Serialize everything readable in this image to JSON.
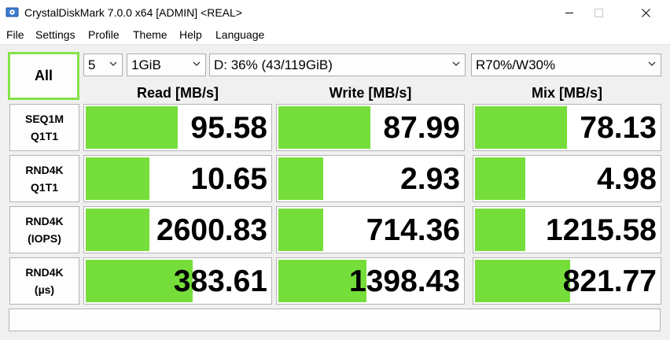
{
  "window": {
    "title": "CrystalDiskMark 7.0.0 x64 [ADMIN] <REAL>",
    "icon": "crystaldiskmark-icon",
    "controls": [
      "minimize-icon",
      "maximize-icon",
      "close-icon"
    ]
  },
  "menu": [
    "File",
    "Settings",
    "Profile",
    "Theme",
    "Help",
    "Language"
  ],
  "controls": {
    "all_button": "All",
    "count": "5",
    "size": "1GiB",
    "drive": "D: 36% (43/119GiB)",
    "mix": "R70%/W30%"
  },
  "columns": [
    "Read [MB/s]",
    "Write [MB/s]",
    "Mix [MB/s]"
  ],
  "rows": [
    {
      "line1": "SEQ1M",
      "line2": "Q1T1",
      "values": [
        "95.58",
        "87.99",
        "78.13"
      ],
      "fills": [
        0.49,
        0.49,
        0.49
      ]
    },
    {
      "line1": "RND4K",
      "line2": "Q1T1",
      "values": [
        "10.65",
        "2.93",
        "4.98"
      ],
      "fills": [
        0.34,
        0.24,
        0.27
      ]
    },
    {
      "line1": "RND4K",
      "line2": "(IOPS)",
      "values": [
        "2600.83",
        "714.36",
        "1215.58"
      ],
      "fills": [
        0.34,
        0.24,
        0.27
      ]
    },
    {
      "line1": "RND4K",
      "line2": "(µs)",
      "values": [
        "383.61",
        "1398.43",
        "821.77"
      ],
      "fills": [
        0.57,
        0.47,
        0.51
      ]
    }
  ],
  "status_text": "",
  "colors": {
    "bar": "#76de3a",
    "all_border": "#84e24a"
  }
}
